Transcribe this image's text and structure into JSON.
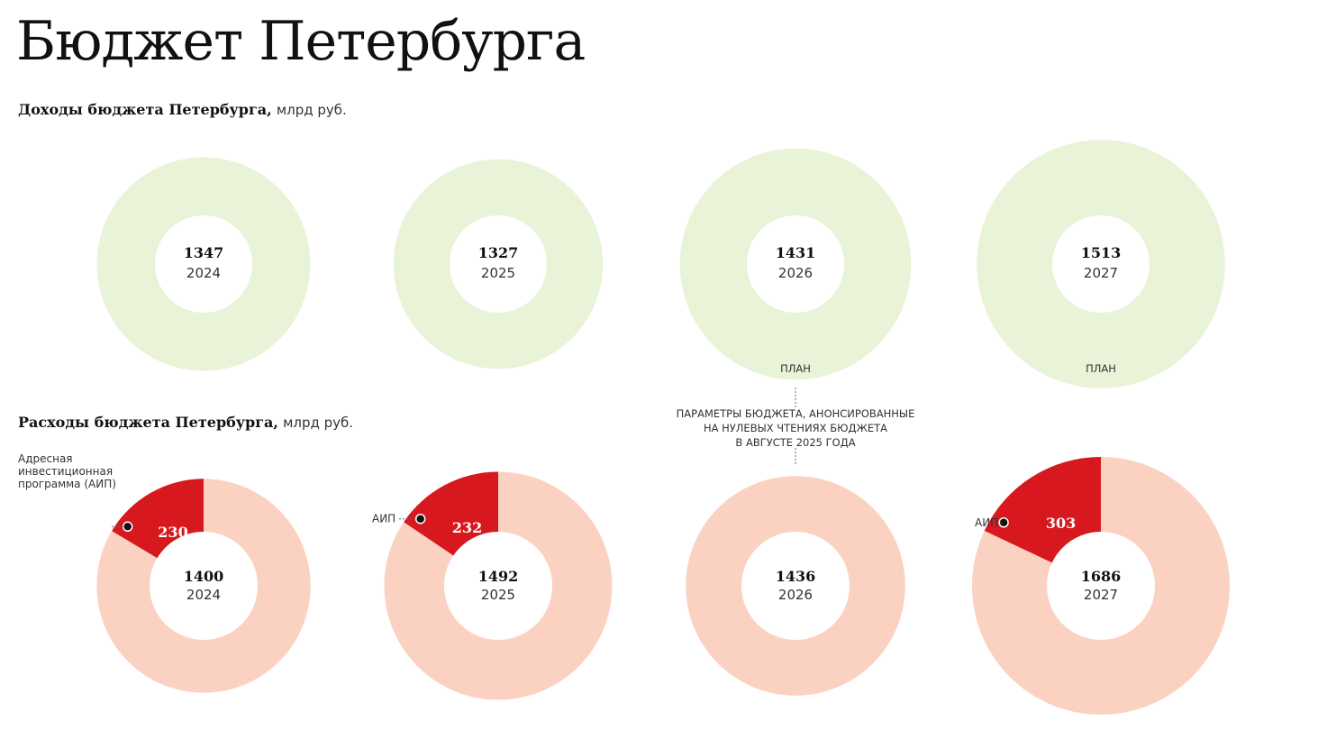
{
  "page": {
    "title": "Бюджет Петербурга"
  },
  "revenue": {
    "heading_bold": "Доходы бюджета Петербурга,",
    "heading_unit": "млрд руб."
  },
  "expenses": {
    "heading_bold": "Расходы бюджета Петербурга,",
    "heading_unit": "млрд руб."
  },
  "plan_label": "ПЛАН",
  "note": {
    "lines": [
      "ПАРАМЕТРЫ БЮДЖЕТА, АНОНСИРОВАННЫЕ",
      "НА НУЛЕВЫХ ЧТЕНИЯХ БЮДЖЕТА",
      "В АВГУСТЕ 2025 ГОДА"
    ]
  },
  "aip_callout": {
    "full_lines": [
      "Адресная",
      "инвестиционная",
      "программа (АИП)"
    ],
    "short": "АИП"
  },
  "colors": {
    "revenue_ring": "#e9f3d8",
    "expense_ring": "#fbd2c1",
    "aip_slice": "#d7191f",
    "text": "#111111"
  },
  "chart_data": [
    {
      "type": "pie",
      "title": "Доходы бюджета Петербурга, млрд руб.",
      "categories": [
        "2024",
        "2025",
        "2026",
        "2027"
      ],
      "values": [
        1347,
        1327,
        1431,
        1513
      ],
      "plan": [
        false,
        false,
        true,
        true
      ]
    },
    {
      "type": "pie",
      "title": "Расходы бюджета Петербурга, млрд руб.",
      "categories": [
        "2024",
        "2025",
        "2026",
        "2027"
      ],
      "values": [
        1400,
        1492,
        1436,
        1686
      ],
      "series": [
        {
          "name": "Адресная инвестиционная программа (АИП)",
          "values": [
            230,
            232,
            null,
            303
          ]
        }
      ]
    }
  ]
}
